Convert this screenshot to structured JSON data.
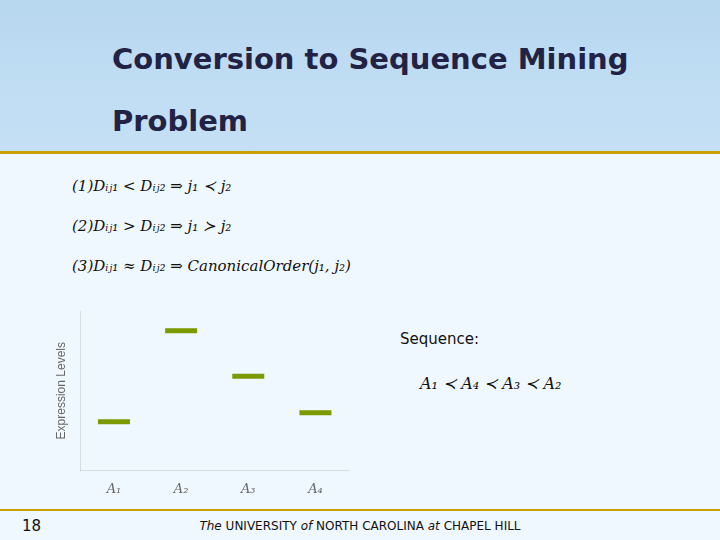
{
  "chart_data": {
    "type": "line",
    "title": [
      "Conversion to Sequence Mining",
      "Problem"
    ],
    "categories": [
      "A₁",
      "A₂",
      "A₃",
      "A₄"
    ],
    "values": [
      0.32,
      0.92,
      0.62,
      0.38
    ],
    "color": "#7a9a00",
    "marker": "dash",
    "line_style": "none",
    "y_label": "Expression Levels",
    "ylim": [
      0,
      1.05
    ],
    "yticks": [],
    "tick_labels": "x",
    "grid": false,
    "annotations": [
      "(1)Dᵢⱼ₁ < Dᵢⱼ₂ ⇒ j₁ ≺ j₂",
      "(2)Dᵢⱼ₁ > Dᵢⱼ₂ ⇒ j₁ ≻ j₂",
      "(3)Dᵢⱼ₁ ≈ Dᵢⱼ₂ ⇒ CanonicalOrder(j₁, j₂)",
      "Sequence:",
      "A₁ ≺ A₄ ≺ A₃ ≺ A₂",
      "18",
      "The UNIVERSITY of NORTH CAROLINA at CHAPEL HILL"
    ]
  }
}
